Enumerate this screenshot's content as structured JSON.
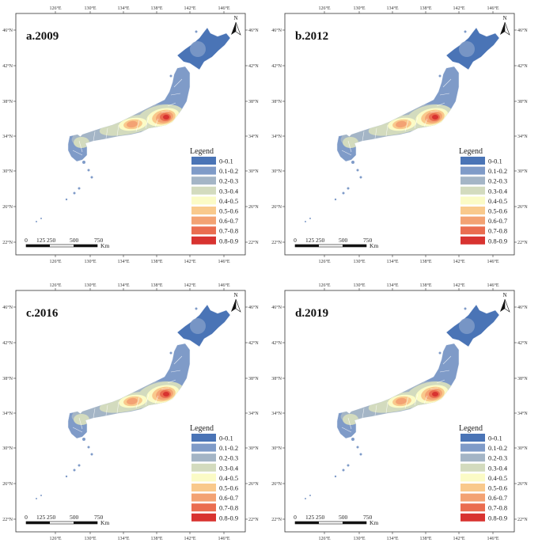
{
  "panels": [
    {
      "id": "a",
      "label": "a.2009"
    },
    {
      "id": "b",
      "label": "b.2012"
    },
    {
      "id": "c",
      "label": "c.2016"
    },
    {
      "id": "d",
      "label": "d.2019"
    }
  ],
  "axes": {
    "lon_ticks": [
      "126°E",
      "130°E",
      "134°E",
      "138°E",
      "142°E",
      "146°E"
    ],
    "lat_ticks": [
      "46°N",
      "42°N",
      "38°N",
      "34°N",
      "30°N",
      "26°N",
      "22°N"
    ]
  },
  "north_arrow": {
    "label": "N"
  },
  "legend": {
    "title": "Legend",
    "items": [
      {
        "label": "0-0.1",
        "color": "#4a74b6"
      },
      {
        "label": "0.1-0.2",
        "color": "#7f9bc8"
      },
      {
        "label": "0.2-0.3",
        "color": "#a4b5c6"
      },
      {
        "label": "0.3-0.4",
        "color": "#d3dbbe"
      },
      {
        "label": "0.4-0.5",
        "color": "#fbfbc6"
      },
      {
        "label": "0.5-0.6",
        "color": "#f9c98c"
      },
      {
        "label": "0.6-0.7",
        "color": "#f3a273"
      },
      {
        "label": "0.7-0.8",
        "color": "#ea6d50"
      },
      {
        "label": "0.8-0.9",
        "color": "#d83330"
      }
    ]
  },
  "scale_bar": {
    "ticks": [
      "0",
      "125",
      "250",
      "500",
      "750"
    ],
    "unit": "Km"
  }
}
